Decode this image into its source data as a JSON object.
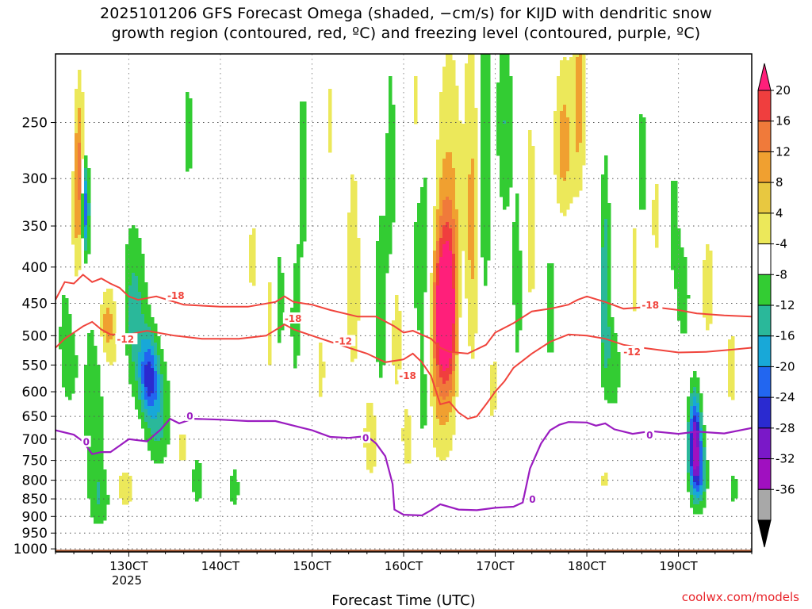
{
  "title_line1": "2025101206 GFS Forecast Omega (shaded, −cm/s) for KIJD with dendritic snow",
  "title_line2": "growth region (contoured, red, ºC) and freezing level (contoured, purple, ºC)",
  "watermark": "coolwx.com/models",
  "colors": {
    "dgz_contour": "#f0443c",
    "freezing_contour": "#9a1cc0",
    "ground": "#9c4e2a"
  },
  "chart_data": {
    "type": "heatmap",
    "xlabel": "Forecast Time (UTC)",
    "ylabel": "",
    "x_axis": {
      "unit": "hours",
      "range": [
        122,
        198
      ],
      "ticks": [
        {
          "value": 130,
          "label": "130CT"
        },
        {
          "value": 140,
          "label": "140CT"
        },
        {
          "value": 150,
          "label": "150CT"
        },
        {
          "value": 160,
          "label": "160CT"
        },
        {
          "value": 170,
          "label": "170CT"
        },
        {
          "value": 180,
          "label": "180CT"
        },
        {
          "value": 190,
          "label": "190CT"
        }
      ],
      "sublabel": "2025"
    },
    "y_axis": {
      "unit": "hPa",
      "scale": "log",
      "inverted": true,
      "range": [
        1010,
        200
      ],
      "ticks": [
        250,
        300,
        350,
        400,
        450,
        500,
        550,
        600,
        650,
        700,
        750,
        800,
        850,
        900,
        950,
        1000
      ]
    },
    "grid": true,
    "colorbar": {
      "labels": [
        "20",
        "16",
        "12",
        "8",
        "4",
        "-4",
        "-8",
        "-12",
        "-16",
        "-20",
        "-24",
        "-28",
        "-32",
        "-36"
      ],
      "colors": [
        "#ff1f7a",
        "#f03e3e",
        "#f07a3a",
        "#f0a030",
        "#e8c840",
        "#ece85a",
        "#ffffff",
        "#33cc33",
        "#2ab89a",
        "#18a8d8",
        "#2266f0",
        "#2a2ad0",
        "#7a18c8",
        "#a010c0",
        "#a8a8a8",
        "#000000"
      ]
    },
    "omega_blobs": [
      {
        "t": 124.6,
        "p": 300,
        "tw": 0.4,
        "pw": 55,
        "v": 15
      },
      {
        "t": 125.2,
        "p": 330,
        "tw": 0.3,
        "pw": 35,
        "v": -22
      },
      {
        "t": 124.0,
        "p": 420,
        "tw": 0.6,
        "pw": 70,
        "v": 7
      },
      {
        "t": 123.5,
        "p": 500,
        "tw": 0.8,
        "pw": 90,
        "v": -9
      },
      {
        "t": 126.2,
        "p": 640,
        "tw": 0.8,
        "pw": 160,
        "v": -8
      },
      {
        "t": 127.5,
        "p": 480,
        "tw": 0.7,
        "pw": 40,
        "v": 9
      },
      {
        "t": 129.0,
        "p": 520,
        "tw": 1.2,
        "pw": 70,
        "v": 5
      },
      {
        "t": 130.5,
        "p": 480,
        "tw": 1.0,
        "pw": 90,
        "v": -12
      },
      {
        "t": 132.2,
        "p": 570,
        "tw": 0.7,
        "pw": 50,
        "v": -18
      },
      {
        "t": 133.2,
        "p": 650,
        "tw": 1.0,
        "pw": 80,
        "v": -10
      },
      {
        "t": 129.6,
        "p": 820,
        "tw": 0.9,
        "pw": 50,
        "v": 6
      },
      {
        "t": 127.0,
        "p": 850,
        "tw": 0.8,
        "pw": 60,
        "v": -6
      },
      {
        "t": 135.8,
        "p": 720,
        "tw": 0.6,
        "pw": 40,
        "v": 6
      },
      {
        "t": 136.5,
        "p": 260,
        "tw": 0.4,
        "pw": 40,
        "v": -6
      },
      {
        "t": 137.5,
        "p": 800,
        "tw": 0.5,
        "pw": 50,
        "v": -7
      },
      {
        "t": 141.5,
        "p": 820,
        "tw": 0.5,
        "pw": 50,
        "v": -6
      },
      {
        "t": 143.5,
        "p": 390,
        "tw": 0.5,
        "pw": 60,
        "v": 5
      },
      {
        "t": 145.5,
        "p": 480,
        "tw": 0.5,
        "pw": 120,
        "v": 5
      },
      {
        "t": 146.4,
        "p": 450,
        "tw": 0.4,
        "pw": 60,
        "v": -8
      },
      {
        "t": 149.0,
        "p": 300,
        "tw": 0.5,
        "pw": 80,
        "v": -6
      },
      {
        "t": 148.2,
        "p": 480,
        "tw": 0.4,
        "pw": 70,
        "v": -7
      },
      {
        "t": 151.0,
        "p": 560,
        "tw": 0.4,
        "pw": 80,
        "v": 5
      },
      {
        "t": 152.0,
        "p": 250,
        "tw": 0.4,
        "pw": 40,
        "v": 5
      },
      {
        "t": 154.5,
        "p": 420,
        "tw": 0.7,
        "pw": 140,
        "v": 6
      },
      {
        "t": 156.4,
        "p": 700,
        "tw": 0.6,
        "pw": 80,
        "v": 7
      },
      {
        "t": 157.5,
        "p": 460,
        "tw": 0.5,
        "pw": 100,
        "v": -8
      },
      {
        "t": 158.6,
        "p": 300,
        "tw": 0.4,
        "pw": 80,
        "v": -7
      },
      {
        "t": 159.2,
        "p": 500,
        "tw": 0.5,
        "pw": 80,
        "v": 6
      },
      {
        "t": 160.4,
        "p": 700,
        "tw": 0.7,
        "pw": 90,
        "v": 5
      },
      {
        "t": 161.4,
        "p": 250,
        "tw": 0.6,
        "pw": 60,
        "v": 8
      },
      {
        "t": 162.0,
        "p": 360,
        "tw": 0.9,
        "pw": 110,
        "v": -9
      },
      {
        "t": 162.2,
        "p": 620,
        "tw": 0.5,
        "pw": 80,
        "v": -8
      },
      {
        "t": 164.5,
        "p": 460,
        "tw": 0.8,
        "pw": 70,
        "v": 21
      },
      {
        "t": 165.0,
        "p": 420,
        "tw": 1.4,
        "pw": 150,
        "v": 12
      },
      {
        "t": 164.0,
        "p": 610,
        "tw": 1.2,
        "pw": 120,
        "v": 6
      },
      {
        "t": 166.3,
        "p": 500,
        "tw": 0.5,
        "pw": 120,
        "v": -8
      },
      {
        "t": 167.6,
        "p": 330,
        "tw": 0.6,
        "pw": 140,
        "v": 8
      },
      {
        "t": 168.8,
        "p": 300,
        "tw": 0.6,
        "pw": 150,
        "v": -9
      },
      {
        "t": 169.6,
        "p": 580,
        "tw": 0.8,
        "pw": 120,
        "v": 5
      },
      {
        "t": 171.0,
        "p": 250,
        "tw": 0.6,
        "pw": 70,
        "v": -8
      },
      {
        "t": 172.5,
        "p": 420,
        "tw": 0.5,
        "pw": 120,
        "v": -7
      },
      {
        "t": 173.8,
        "p": 350,
        "tw": 0.8,
        "pw": 150,
        "v": 5
      },
      {
        "t": 177.5,
        "p": 270,
        "tw": 0.8,
        "pw": 50,
        "v": 10
      },
      {
        "t": 179.2,
        "p": 230,
        "tw": 0.5,
        "pw": 60,
        "v": 9
      },
      {
        "t": 176.0,
        "p": 460,
        "tw": 0.4,
        "pw": 70,
        "v": -7
      },
      {
        "t": 182.0,
        "p": 440,
        "tw": 0.4,
        "pw": 110,
        "v": -12
      },
      {
        "t": 183.0,
        "p": 560,
        "tw": 0.5,
        "pw": 60,
        "v": -7
      },
      {
        "t": 186.0,
        "p": 290,
        "tw": 0.4,
        "pw": 50,
        "v": -7
      },
      {
        "t": 185.2,
        "p": 400,
        "tw": 0.4,
        "pw": 90,
        "v": 5
      },
      {
        "t": 187.5,
        "p": 340,
        "tw": 0.4,
        "pw": 60,
        "v": 5
      },
      {
        "t": 189.5,
        "p": 350,
        "tw": 0.4,
        "pw": 50,
        "v": -7
      },
      {
        "t": 190.5,
        "p": 440,
        "tw": 0.5,
        "pw": 50,
        "v": -8
      },
      {
        "t": 193.2,
        "p": 430,
        "tw": 0.8,
        "pw": 90,
        "v": 5
      },
      {
        "t": 191.8,
        "p": 720,
        "tw": 0.5,
        "pw": 80,
        "v": -30
      },
      {
        "t": 192.5,
        "p": 790,
        "tw": 0.5,
        "pw": 60,
        "v": -10
      },
      {
        "t": 195.8,
        "p": 560,
        "tw": 0.6,
        "pw": 90,
        "v": 5
      },
      {
        "t": 196.0,
        "p": 820,
        "tw": 0.4,
        "pw": 40,
        "v": -6
      },
      {
        "t": 182.0,
        "p": 800,
        "tw": 0.4,
        "pw": 20,
        "v": 6
      }
    ],
    "contours": {
      "minus18": {
        "labels": [
          "-18",
          "-18",
          "-18",
          "-18"
        ],
        "label_pos": [
          [
            134.2,
            438
          ],
          [
            147.0,
            472
          ],
          [
            159.5,
            568
          ],
          [
            186.0,
            452
          ]
        ],
        "points": [
          [
            122,
            445
          ],
          [
            123,
            420
          ],
          [
            124,
            422
          ],
          [
            125,
            410
          ],
          [
            126,
            420
          ],
          [
            127,
            415
          ],
          [
            128,
            422
          ],
          [
            129,
            428
          ],
          [
            130,
            440
          ],
          [
            131,
            445
          ],
          [
            133,
            440
          ],
          [
            136,
            452
          ],
          [
            140,
            455
          ],
          [
            143,
            455
          ],
          [
            146,
            448
          ],
          [
            147,
            440
          ],
          [
            148,
            448
          ],
          [
            150,
            452
          ],
          [
            152,
            460
          ],
          [
            155,
            470
          ],
          [
            157,
            470
          ],
          [
            159,
            485
          ],
          [
            160,
            495
          ],
          [
            161,
            492
          ],
          [
            163,
            505
          ],
          [
            164,
            520
          ],
          [
            165,
            527
          ],
          [
            167,
            530
          ],
          [
            169,
            515
          ],
          [
            170,
            495
          ],
          [
            172,
            480
          ],
          [
            174,
            462
          ],
          [
            176,
            458
          ],
          [
            178,
            452
          ],
          [
            179,
            445
          ],
          [
            180,
            440
          ],
          [
            182,
            448
          ],
          [
            184,
            458
          ],
          [
            187,
            455
          ],
          [
            190,
            460
          ],
          [
            192,
            465
          ],
          [
            195,
            468
          ],
          [
            198,
            470
          ]
        ]
      },
      "minus12": {
        "labels": [
          "-12",
          "-12",
          "-12"
        ],
        "label_pos": [
          [
            128.7,
            505
          ],
          [
            152.5,
            508
          ],
          [
            184.0,
            526
          ]
        ],
        "points": [
          [
            122,
            520
          ],
          [
            123,
            505
          ],
          [
            124,
            495
          ],
          [
            125,
            485
          ],
          [
            126,
            478
          ],
          [
            127,
            490
          ],
          [
            128,
            498
          ],
          [
            130,
            498
          ],
          [
            132,
            492
          ],
          [
            135,
            500
          ],
          [
            138,
            505
          ],
          [
            142,
            505
          ],
          [
            145,
            500
          ],
          [
            147,
            482
          ],
          [
            148,
            490
          ],
          [
            150,
            500
          ],
          [
            152,
            510
          ],
          [
            154,
            520
          ],
          [
            156,
            530
          ],
          [
            158,
            545
          ],
          [
            160,
            540
          ],
          [
            161,
            530
          ],
          [
            162,
            545
          ],
          [
            163,
            570
          ],
          [
            164,
            625
          ],
          [
            165,
            620
          ],
          [
            166,
            642
          ],
          [
            167,
            655
          ],
          [
            168,
            650
          ],
          [
            169,
            625
          ],
          [
            170,
            600
          ],
          [
            171,
            580
          ],
          [
            172,
            555
          ],
          [
            174,
            530
          ],
          [
            176,
            510
          ],
          [
            178,
            498
          ],
          [
            180,
            500
          ],
          [
            182,
            505
          ],
          [
            184,
            515
          ],
          [
            186,
            520
          ],
          [
            188,
            524
          ],
          [
            190,
            528
          ],
          [
            193,
            527
          ],
          [
            196,
            523
          ],
          [
            198,
            520
          ]
        ]
      },
      "freezing": {
        "labels": [
          "0",
          "0",
          "0",
          "0",
          "0"
        ],
        "label_pos": [
          [
            125.0,
            705
          ],
          [
            136.3,
            648
          ],
          [
            155.5,
            696
          ],
          [
            173.7,
            850
          ],
          [
            186.5,
            690
          ]
        ],
        "points": [
          [
            122,
            680
          ],
          [
            124,
            690
          ],
          [
            125,
            705
          ],
          [
            126,
            735
          ],
          [
            127,
            730
          ],
          [
            128,
            730
          ],
          [
            129,
            715
          ],
          [
            130,
            700
          ],
          [
            132,
            705
          ],
          [
            133.5,
            678
          ],
          [
            134.5,
            655
          ],
          [
            135.5,
            665
          ],
          [
            137,
            655
          ],
          [
            140,
            657
          ],
          [
            143,
            660
          ],
          [
            146,
            660
          ],
          [
            148,
            670
          ],
          [
            150,
            680
          ],
          [
            152,
            695
          ],
          [
            154,
            697
          ],
          [
            156,
            693
          ],
          [
            157,
            710
          ],
          [
            158,
            740
          ],
          [
            158.8,
            810
          ],
          [
            159,
            880
          ],
          [
            160,
            895
          ],
          [
            162,
            897
          ],
          [
            163,
            882
          ],
          [
            164,
            865
          ],
          [
            166,
            880
          ],
          [
            168,
            882
          ],
          [
            170,
            875
          ],
          [
            172,
            872
          ],
          [
            173,
            860
          ],
          [
            173.8,
            770
          ],
          [
            175,
            710
          ],
          [
            176,
            680
          ],
          [
            177,
            668
          ],
          [
            178,
            662
          ],
          [
            180,
            663
          ],
          [
            181,
            670
          ],
          [
            182,
            665
          ],
          [
            183,
            678
          ],
          [
            185,
            688
          ],
          [
            187,
            682
          ],
          [
            190,
            688
          ],
          [
            192,
            683
          ],
          [
            195,
            687
          ],
          [
            198,
            675
          ]
        ]
      }
    }
  }
}
